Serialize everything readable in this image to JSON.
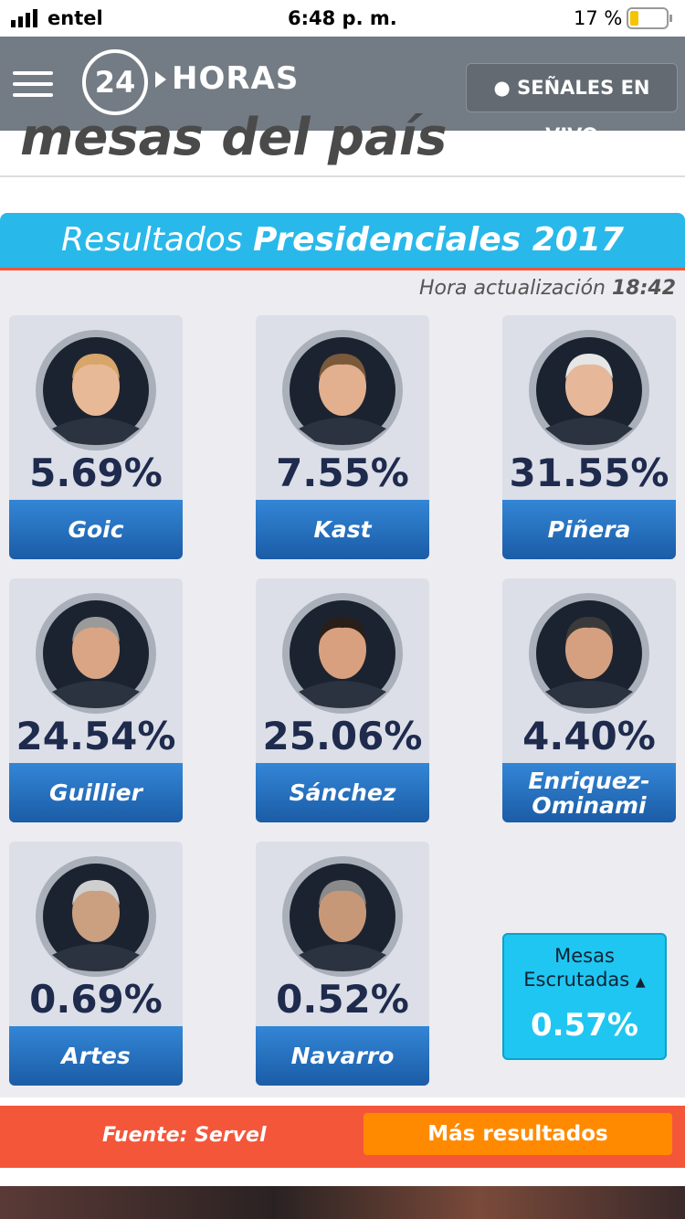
{
  "status_bar": {
    "carrier": "entel",
    "time": "6:48 p. m.",
    "battery": "17 %"
  },
  "header": {
    "logo_number": "24",
    "logo_text": "HORAS",
    "live_button": "SEÑALES EN VIVO"
  },
  "article": {
    "heading_fragment": "mesas del país"
  },
  "results": {
    "title_regular": "Resultados",
    "title_bold": "Presidenciales 2017",
    "update_label": "Hora actualización",
    "update_time": "18:42",
    "candidates": [
      {
        "percent": "5.69%",
        "name": "Goic"
      },
      {
        "percent": "7.55%",
        "name": "Kast"
      },
      {
        "percent": "31.55%",
        "name": "Piñera"
      },
      {
        "percent": "24.54%",
        "name": "Guillier"
      },
      {
        "percent": "25.06%",
        "name": "Sánchez"
      },
      {
        "percent": "4.40%",
        "name": "Enriquez-Ominami"
      },
      {
        "percent": "0.69%",
        "name": "Artes"
      },
      {
        "percent": "0.52%",
        "name": "Navarro"
      }
    ],
    "mesas": {
      "label": "Mesas Escrutadas",
      "value": "0.57%"
    },
    "footer": {
      "source": "Fuente: Servel",
      "button": "Más resultados"
    }
  }
}
